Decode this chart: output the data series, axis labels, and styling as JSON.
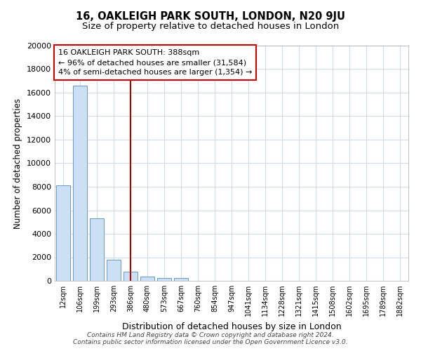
{
  "title1": "16, OAKLEIGH PARK SOUTH, LONDON, N20 9JU",
  "title2": "Size of property relative to detached houses in London",
  "xlabel": "Distribution of detached houses by size in London",
  "ylabel": "Number of detached properties",
  "categories": [
    "12sqm",
    "106sqm",
    "199sqm",
    "293sqm",
    "386sqm",
    "480sqm",
    "573sqm",
    "667sqm",
    "760sqm",
    "854sqm",
    "947sqm",
    "1041sqm",
    "1134sqm",
    "1228sqm",
    "1321sqm",
    "1415sqm",
    "1508sqm",
    "1602sqm",
    "1695sqm",
    "1789sqm",
    "1882sqm"
  ],
  "values": [
    8100,
    16600,
    5300,
    1800,
    800,
    350,
    250,
    250,
    0,
    0,
    0,
    0,
    0,
    0,
    0,
    0,
    0,
    0,
    0,
    0,
    0
  ],
  "bar_color": "#cce0f5",
  "bar_edge_color": "#6699cc",
  "vline_x_idx": 4,
  "vline_color": "#aa0000",
  "annotation_text": "16 OAKLEIGH PARK SOUTH: 388sqm\n← 96% of detached houses are smaller (31,584)\n4% of semi-detached houses are larger (1,354) →",
  "annotation_box_color": "#ffffff",
  "annotation_box_edge_color": "#cc0000",
  "ylim": [
    0,
    20000
  ],
  "yticks": [
    0,
    2000,
    4000,
    6000,
    8000,
    10000,
    12000,
    14000,
    16000,
    18000,
    20000
  ],
  "footer": "Contains HM Land Registry data © Crown copyright and database right 2024.\nContains public sector information licensed under the Open Government Licence v3.0.",
  "bg_color": "#ffffff",
  "plot_bg_color": "#ffffff",
  "grid_color": "#d0dde8"
}
